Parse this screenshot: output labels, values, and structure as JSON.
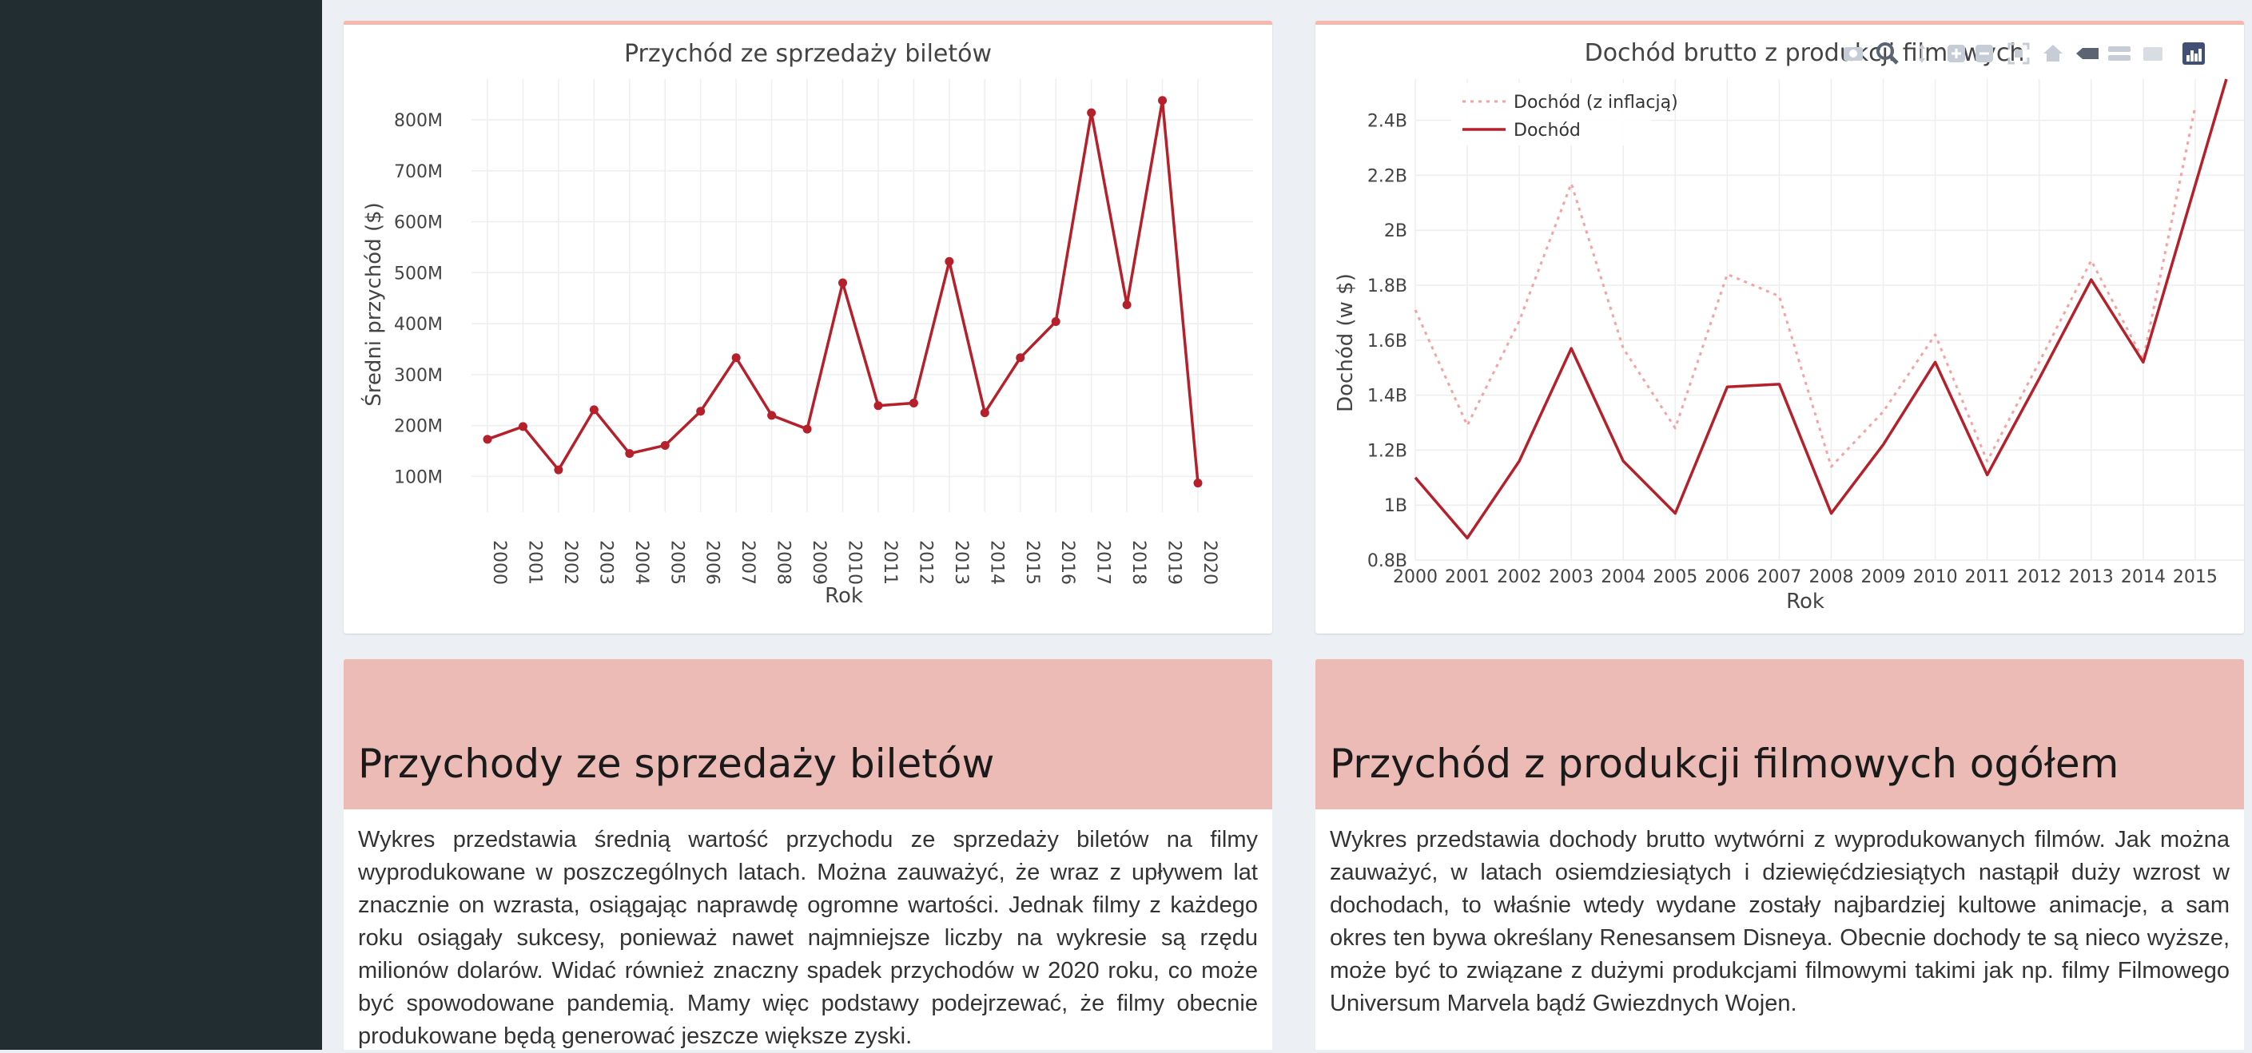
{
  "chart_data": [
    {
      "type": "line",
      "title": "Przychód ze sprzedaży biletów",
      "xlabel": "Rok",
      "ylabel": "Średni przychód ($)",
      "x_categories": [
        "2000",
        "2001",
        "2002",
        "2003",
        "2004",
        "2005",
        "2006",
        "2007",
        "2008",
        "2009",
        "2010",
        "2011",
        "2012",
        "2013",
        "2014",
        "2015",
        "2016",
        "2017",
        "2018",
        "2019",
        "2020"
      ],
      "y_ticks": [
        {
          "v": 100,
          "label": "100M"
        },
        {
          "v": 200,
          "label": "200M"
        },
        {
          "v": 300,
          "label": "300M"
        },
        {
          "v": 400,
          "label": "400M"
        },
        {
          "v": 500,
          "label": "500M"
        },
        {
          "v": 600,
          "label": "600M"
        },
        {
          "v": 700,
          "label": "700M"
        },
        {
          "v": 800,
          "label": "800M"
        }
      ],
      "ylim": [
        30,
        880
      ],
      "y_unit": "millions $",
      "series": [
        {
          "values": [
            173,
            198,
            113,
            231,
            145,
            161,
            228,
            333,
            220,
            193,
            480,
            239,
            244,
            522,
            225,
            333,
            404,
            814,
            437,
            838,
            87
          ],
          "color": "#b5202a",
          "markers": true
        }
      ],
      "grid": true
    },
    {
      "type": "line",
      "title": "Dochód brutto z produkcji filmowych",
      "xlabel": "Rok",
      "ylabel": "Dochód (w $)",
      "x_ticks": [
        "2000",
        "2001",
        "2002",
        "2003",
        "2004",
        "2005",
        "2006",
        "2007",
        "2008",
        "2009",
        "2010",
        "2011",
        "2012",
        "2013",
        "2014",
        "2015"
      ],
      "x_range": [
        2000,
        2015.6
      ],
      "y_ticks": [
        {
          "v": 0.8,
          "label": "0.8B"
        },
        {
          "v": 1.0,
          "label": "1B"
        },
        {
          "v": 1.2,
          "label": "1.2B"
        },
        {
          "v": 1.4,
          "label": "1.4B"
        },
        {
          "v": 1.6,
          "label": "1.6B"
        },
        {
          "v": 1.8,
          "label": "1.8B"
        },
        {
          "v": 2.0,
          "label": "2B"
        },
        {
          "v": 2.2,
          "label": "2.2B"
        },
        {
          "v": 2.4,
          "label": "2.4B"
        }
      ],
      "ylim": [
        0.8,
        2.55
      ],
      "y_unit": "billions $",
      "legend_position": "top-left",
      "series": [
        {
          "name": "Dochód (z inflacją)",
          "style": "dotted",
          "color": "#f4a3a3",
          "x": [
            2000,
            2001,
            2002,
            2003,
            2004,
            2005,
            2006,
            2007,
            2008,
            2009,
            2010,
            2011,
            2012,
            2013,
            2014,
            2015
          ],
          "values": [
            1.71,
            1.29,
            1.67,
            2.17,
            1.57,
            1.28,
            1.84,
            1.76,
            1.14,
            1.34,
            1.62,
            1.16,
            1.52,
            1.89,
            1.53,
            2.45
          ]
        },
        {
          "name": "Dochód",
          "style": "solid",
          "color": "#b5202a",
          "x": [
            2000,
            2001,
            2002,
            2003,
            2004,
            2005,
            2006,
            2007,
            2008,
            2009,
            2010,
            2011,
            2012,
            2013,
            2014,
            2015.6
          ],
          "values": [
            1.1,
            0.88,
            1.16,
            1.57,
            1.16,
            0.97,
            1.43,
            1.44,
            0.97,
            1.22,
            1.52,
            1.11,
            1.46,
            1.82,
            1.52,
            2.55
          ]
        }
      ],
      "grid": true
    }
  ],
  "modebar": [
    "camera-icon",
    "zoom-icon",
    "pan-icon",
    "zoom-in-icon",
    "zoom-out-icon",
    "autoscale-icon",
    "home-icon",
    "spike-icon",
    "hover-closest-icon",
    "hover-compare-icon",
    "plotly-logo-icon"
  ],
  "sections": [
    {
      "heading": "Przychody ze sprzedaży biletów",
      "text": "Wykres przedstawia średnią wartość przychodu ze sprzedaży biletów na filmy wyprodukowane w poszczególnych latach. Można zauważyć, że wraz z upływem lat znacznie on wzrasta, osiągając naprawdę ogromne wartości. Jednak filmy z każdego roku osiągały sukcesy, ponieważ nawet najmniejsze liczby na wykresie są rzędu milionów dolarów. Widać również znaczny spadek przychodów w 2020 roku, co może być spowodowane pandemią. Mamy więc podstawy podejrzewać, że filmy obecnie produkowane będą generować jeszcze większe zyski."
    },
    {
      "heading": "Przychód z produkcji filmowych ogółem",
      "text": "Wykres przedstawia dochody brutto wytwórni z wyprodukowanych filmów. Jak można zauważyć, w latach osiemdziesiątych i dziewięćdziesiątych nastąpił duży wzrost w dochodach, to właśnie wtedy wydane zostały najbardziej kultowe animacje, a sam okres ten bywa określany Renesansem Disneya. Obecnie dochody te są nieco wyższe, może być to związane z dużymi produkcjami filmowymi takimi jak np. filmy Filmowego Universum Marvela bądź Gwiezdnych Wojen."
    }
  ]
}
